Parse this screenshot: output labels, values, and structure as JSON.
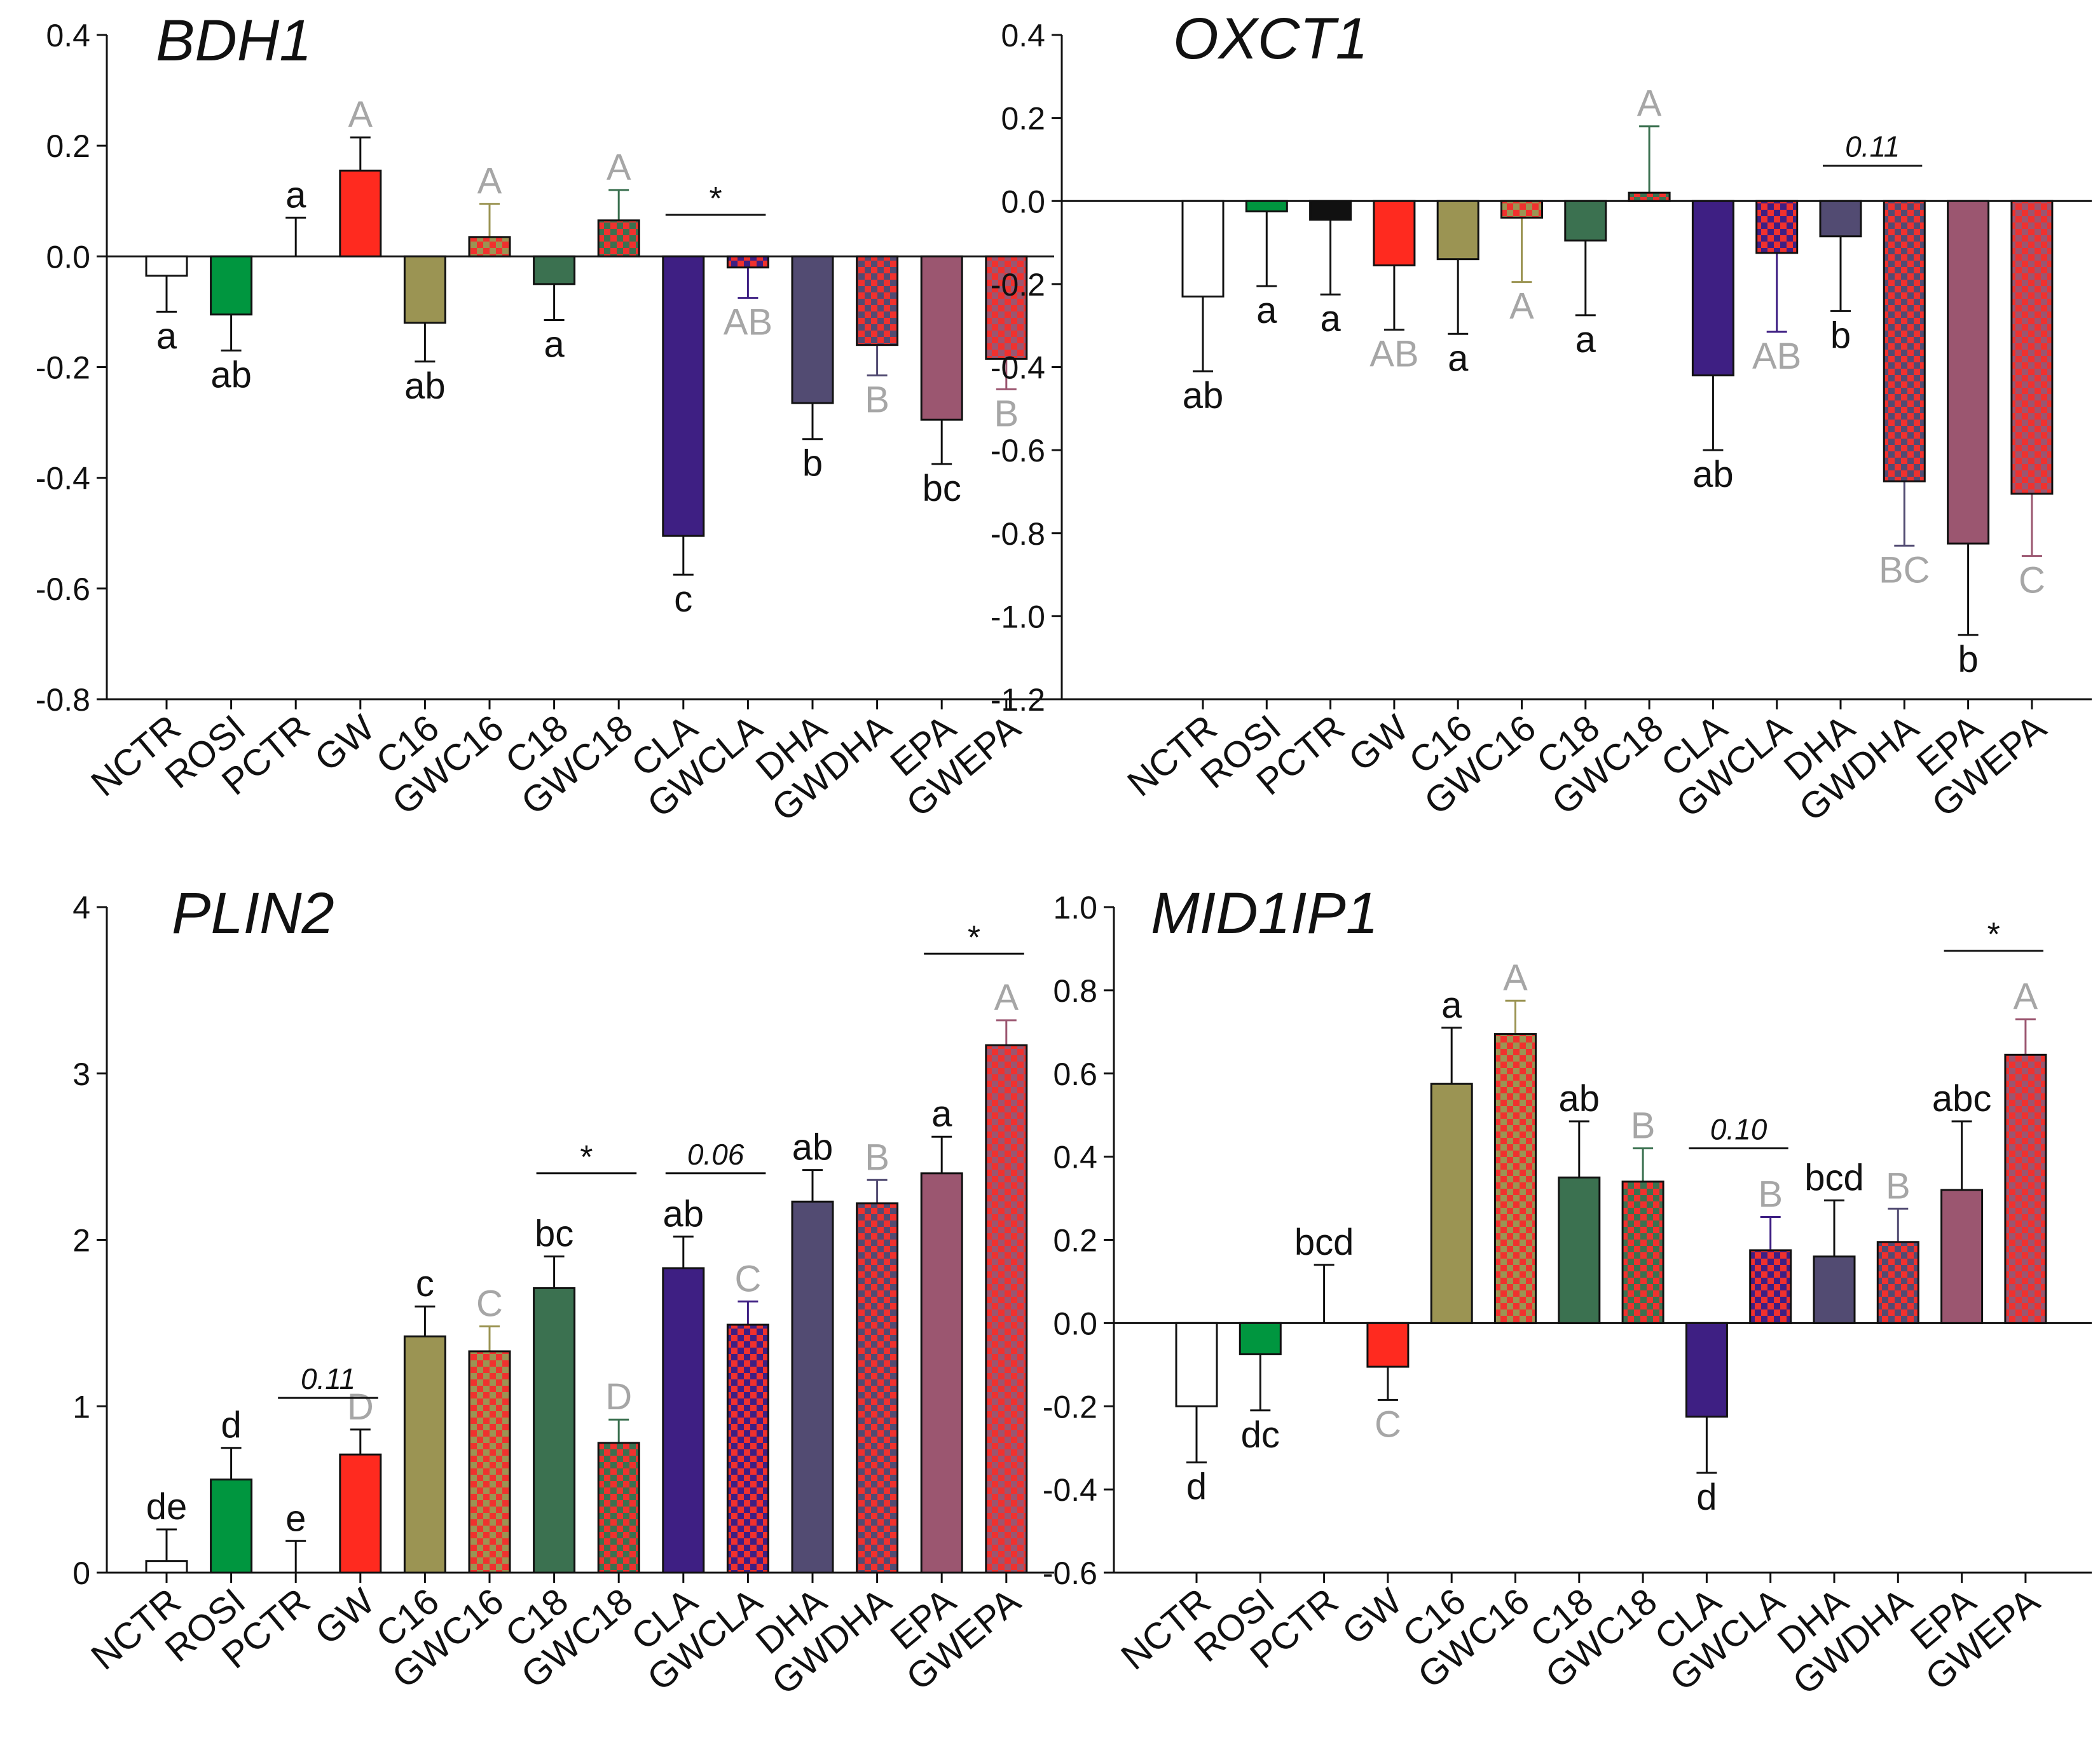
{
  "colors": {
    "NCTR": "#ffffff",
    "ROSI": "#00963f",
    "PCTR": "#111111",
    "GW": "#ff2a1f",
    "C16": "#9b9453",
    "GWC16": "#9b9453",
    "C18": "#3b7150",
    "GWC18": "#3b7150",
    "CLA": "#3e1f83",
    "GWCLA": "#3e1f83",
    "DHA": "#524b72",
    "GWDHA": "#524b72",
    "EPA": "#9b5670",
    "GWEPA": "#9b5670",
    "check_red": "#f0312e",
    "letter_lower": "#111111",
    "letter_upper": "#a6a6a6"
  },
  "chart_data": [
    {
      "type": "bar",
      "title": "BDH1",
      "categories": [
        "NCTR",
        "ROSI",
        "PCTR",
        "GW",
        "C16",
        "GWC16",
        "C18",
        "GWC18",
        "CLA",
        "GWCLA",
        "DHA",
        "GWDHA",
        "EPA",
        "GWEPA"
      ],
      "values": [
        -0.035,
        -0.105,
        0.0,
        0.155,
        -0.12,
        0.035,
        -0.05,
        0.065,
        -0.505,
        -0.02,
        -0.265,
        -0.16,
        -0.295,
        -0.185
      ],
      "errors": [
        0.065,
        0.065,
        0.07,
        0.06,
        0.07,
        0.06,
        0.065,
        0.055,
        0.07,
        0.055,
        0.065,
        0.055,
        0.08,
        0.055
      ],
      "letters": [
        "a",
        "ab",
        "a",
        "A",
        "ab",
        "A",
        "a",
        "A",
        "c",
        "AB",
        "b",
        "B",
        "bc",
        "B"
      ],
      "ylim": [
        -0.8,
        0.4
      ],
      "yticks": [
        "0.4",
        "0.2",
        "0.0",
        "-0.2",
        "-0.4",
        "-0.6",
        "-0.8"
      ],
      "ytick_values": [
        0.4,
        0.2,
        0.0,
        -0.2,
        -0.4,
        -0.6,
        -0.8
      ],
      "annotations": [
        {
          "text": "*",
          "from": 8,
          "to": 9,
          "y": 0.075,
          "italic": false
        }
      ]
    },
    {
      "type": "bar",
      "title": "OXCT1",
      "categories": [
        "NCTR",
        "ROSI",
        "PCTR",
        "GW",
        "C16",
        "GWC16",
        "C18",
        "GWC18",
        "CLA",
        "GWCLA",
        "DHA",
        "GWDHA",
        "EPA",
        "GWEPA"
      ],
      "values": [
        -0.23,
        -0.025,
        -0.045,
        -0.155,
        -0.14,
        -0.04,
        -0.095,
        0.02,
        -0.42,
        -0.125,
        -0.085,
        -0.675,
        -0.825,
        -0.705
      ],
      "errors": [
        0.18,
        0.18,
        0.18,
        0.155,
        0.18,
        0.155,
        0.18,
        0.16,
        0.18,
        0.19,
        0.18,
        0.155,
        0.22,
        0.15
      ],
      "letters": [
        "ab",
        "a",
        "a",
        "AB",
        "a",
        "A",
        "a",
        "A",
        "ab",
        "AB",
        "b",
        "BC",
        "b",
        "C"
      ],
      "ylim": [
        -1.2,
        0.4
      ],
      "yticks": [
        "0.4",
        "0.2",
        "0.0",
        "-0.2",
        "-0.4",
        "-0.6",
        "-0.8",
        "-1.0",
        "-1.2"
      ],
      "ytick_values": [
        0.4,
        0.2,
        0.0,
        -0.2,
        -0.4,
        -0.6,
        -0.8,
        -1.0,
        -1.2
      ],
      "annotations": [
        {
          "text": "0.11",
          "from": 10,
          "to": 11,
          "y": 0.085,
          "italic": true
        }
      ]
    },
    {
      "type": "bar",
      "title": "PLIN2",
      "categories": [
        "NCTR",
        "ROSI",
        "PCTR",
        "GW",
        "C16",
        "GWC16",
        "C18",
        "GWC18",
        "CLA",
        "GWCLA",
        "DHA",
        "GWDHA",
        "EPA",
        "GWEPA"
      ],
      "values": [
        0.07,
        0.56,
        0.0,
        0.71,
        1.42,
        1.33,
        1.71,
        0.78,
        1.83,
        1.49,
        2.23,
        2.22,
        2.4,
        3.17
      ],
      "errors": [
        0.19,
        0.19,
        0.19,
        0.15,
        0.18,
        0.15,
        0.19,
        0.14,
        0.19,
        0.14,
        0.19,
        0.14,
        0.22,
        0.15
      ],
      "letters": [
        "de",
        "d",
        "e",
        "D",
        "c",
        "C",
        "bc",
        "D",
        "ab",
        "C",
        "ab",
        "B",
        "a",
        "A"
      ],
      "ylim": [
        0,
        4
      ],
      "yticks": [
        "4",
        "3",
        "2",
        "1",
        "0"
      ],
      "ytick_values": [
        4,
        3,
        2,
        1,
        0
      ],
      "annotations": [
        {
          "text": "0.11",
          "from": 2,
          "to": 3,
          "y": 1.05,
          "italic": true
        },
        {
          "text": "*",
          "from": 6,
          "to": 7,
          "y": 2.4,
          "italic": false
        },
        {
          "text": "0.06",
          "from": 8,
          "to": 9,
          "y": 2.4,
          "italic": true
        },
        {
          "text": "*",
          "from": 12,
          "to": 13,
          "y": 3.72,
          "italic": false
        }
      ]
    },
    {
      "type": "bar",
      "title": "MID1IP1",
      "categories": [
        "NCTR",
        "ROSI",
        "PCTR",
        "GW",
        "C16",
        "GWC16",
        "C18",
        "GWC18",
        "CLA",
        "GWCLA",
        "DHA",
        "GWDHA",
        "EPA",
        "GWEPA"
      ],
      "values": [
        -0.2,
        -0.075,
        0.0,
        -0.105,
        0.575,
        0.695,
        0.35,
        0.34,
        -0.225,
        0.175,
        0.16,
        0.195,
        0.32,
        0.645
      ],
      "errors": [
        0.135,
        0.135,
        0.14,
        0.08,
        0.135,
        0.08,
        0.135,
        0.08,
        0.135,
        0.08,
        0.135,
        0.08,
        0.165,
        0.085
      ],
      "letters": [
        "d",
        "dc",
        "bcd",
        "C",
        "a",
        "A",
        "ab",
        "B",
        "d",
        "B",
        "bcd",
        "B",
        "abc",
        "A"
      ],
      "ylim": [
        -0.6,
        1.0
      ],
      "yticks": [
        "1.0",
        "0.8",
        "0.6",
        "0.4",
        "0.2",
        "0.0",
        "-0.2",
        "-0.4",
        "-0.6"
      ],
      "ytick_values": [
        1.0,
        0.8,
        0.6,
        0.4,
        0.2,
        0.0,
        -0.2,
        -0.4,
        -0.6
      ],
      "annotations": [
        {
          "text": "0.10",
          "from": 8,
          "to": 9,
          "y": 0.42,
          "italic": true
        },
        {
          "text": "*",
          "from": 12,
          "to": 13,
          "y": 0.895,
          "italic": false
        }
      ]
    }
  ]
}
